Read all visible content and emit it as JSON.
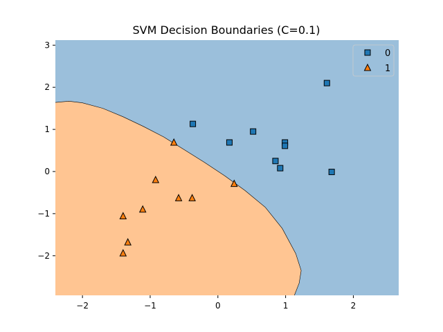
{
  "chart_data": {
    "type": "scatter",
    "title": "SVM Decision Boundaries (C=0.1)",
    "xlabel": "",
    "ylabel": "",
    "xlim": [
      -2.4,
      2.67
    ],
    "ylim": [
      -2.94,
      3.12
    ],
    "xticks": [
      -2,
      -1,
      0,
      1,
      2
    ],
    "yticks": [
      -2,
      -1,
      0,
      1,
      2,
      3
    ],
    "xtick_labels": [
      "−2",
      "−1",
      "0",
      "1",
      "2"
    ],
    "ytick_labels": [
      "−2",
      "−1",
      "0",
      "1",
      "2",
      "3"
    ],
    "grid": false,
    "legend_position": "top-right",
    "region_colors": {
      "0": "#9bbfdb",
      "1": "#ffc592"
    },
    "decision_boundary": [
      [
        -2.4,
        1.64
      ],
      [
        -2.2,
        1.67
      ],
      [
        -2.0,
        1.63
      ],
      [
        -1.7,
        1.5
      ],
      [
        -1.4,
        1.3
      ],
      [
        -1.1,
        1.07
      ],
      [
        -0.8,
        0.82
      ],
      [
        -0.5,
        0.52
      ],
      [
        -0.2,
        0.22
      ],
      [
        0.1,
        -0.1
      ],
      [
        0.4,
        -0.45
      ],
      [
        0.7,
        -0.85
      ],
      [
        0.95,
        -1.35
      ],
      [
        1.15,
        -1.95
      ],
      [
        1.23,
        -2.35
      ],
      [
        1.2,
        -2.65
      ],
      [
        1.13,
        -2.94
      ]
    ],
    "series": [
      {
        "name": "0",
        "marker": "square",
        "color": "#1f77b4",
        "x": [
          -0.37,
          0.17,
          0.52,
          0.85,
          0.92,
          0.99,
          0.99,
          1.61,
          1.68
        ],
        "y": [
          1.13,
          0.69,
          0.95,
          0.25,
          0.08,
          0.69,
          0.61,
          2.1,
          -0.01
        ]
      },
      {
        "name": "1",
        "marker": "triangle",
        "color": "#ff7f0e",
        "x": [
          -0.65,
          -0.92,
          -0.58,
          -0.38,
          0.24,
          -1.11,
          -1.4,
          -1.33,
          -1.4
        ],
        "y": [
          0.69,
          -0.2,
          -0.63,
          -0.63,
          -0.29,
          -0.9,
          -1.06,
          -1.68,
          -1.94
        ]
      }
    ]
  }
}
